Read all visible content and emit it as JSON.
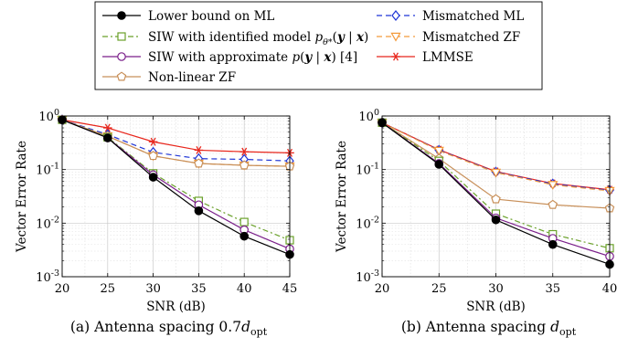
{
  "legend": {
    "entries": [
      {
        "series": "lb",
        "label": "Lower bound on ML"
      },
      {
        "series": "mml",
        "label": "Mismatched ML"
      },
      {
        "series": "siw_id",
        "label": "SIW with identified model p_θ*(y | x)"
      },
      {
        "series": "mzf",
        "label": "Mismatched ZF"
      },
      {
        "series": "siw_ap",
        "label": "SIW with approximate p(y | x) [4]"
      },
      {
        "series": "lmmse",
        "label": "LMMSE"
      },
      {
        "series": "nlzf",
        "label": "Non-linear ZF"
      }
    ]
  },
  "series_styles": {
    "lb": {
      "color": "#000000",
      "dash": "",
      "marker": "filled-circle"
    },
    "siw_id": {
      "color": "#6aa12a",
      "dash": "6,3,2,3",
      "marker": "square"
    },
    "siw_ap": {
      "color": "#7a1f8a",
      "dash": "",
      "marker": "circle"
    },
    "nlzf": {
      "color": "#c8905a",
      "dash": "",
      "marker": "pentagon"
    },
    "mml": {
      "color": "#1f35d6",
      "dash": "6,4",
      "marker": "diamond"
    },
    "mzf": {
      "color": "#f39a3a",
      "dash": "6,4",
      "marker": "triangle-down"
    },
    "lmmse": {
      "color": "#e8261c",
      "dash": "",
      "marker": "asterisk"
    }
  },
  "chart_data": [
    {
      "type": "line",
      "caption": "(a) Antenna spacing 0.7d_opt",
      "xlabel": "SNR (dB)",
      "ylabel": "Vector Error Rate",
      "yscale": "log",
      "xlim": [
        20,
        45
      ],
      "ylim": [
        0.001,
        1
      ],
      "xticks": [
        20,
        25,
        30,
        35,
        40,
        45
      ],
      "yticks": [
        {
          "value": 0.001,
          "label": "10^-3"
        },
        {
          "value": 0.01,
          "label": "10^-2"
        },
        {
          "value": 0.1,
          "label": "10^-1"
        },
        {
          "value": 1,
          "label": "10^0"
        }
      ],
      "grid": true,
      "x": [
        20,
        25,
        30,
        35,
        40,
        45
      ],
      "series": [
        {
          "key": "lmmse",
          "values": [
            0.85,
            0.6,
            0.33,
            0.23,
            0.215,
            0.205
          ]
        },
        {
          "key": "mml",
          "values": [
            0.85,
            0.45,
            0.21,
            0.16,
            0.155,
            0.145
          ]
        },
        {
          "key": "mzf",
          "values": [
            0.85,
            0.42,
            0.18,
            0.13,
            0.12,
            0.115
          ]
        },
        {
          "key": "nlzf",
          "values": [
            0.85,
            0.42,
            0.18,
            0.13,
            0.12,
            0.115
          ]
        },
        {
          "key": "siw_id",
          "values": [
            0.85,
            0.4,
            0.085,
            0.026,
            0.0105,
            0.0048
          ]
        },
        {
          "key": "siw_ap",
          "values": [
            0.85,
            0.39,
            0.08,
            0.022,
            0.0075,
            0.0033
          ]
        },
        {
          "key": "lb",
          "values": [
            0.85,
            0.39,
            0.072,
            0.017,
            0.0057,
            0.0026
          ]
        }
      ]
    },
    {
      "type": "line",
      "caption": "(b) Antenna spacing d_opt",
      "xlabel": "SNR (dB)",
      "ylabel": "Vector Error Rate",
      "yscale": "log",
      "xlim": [
        20,
        40
      ],
      "ylim": [
        0.001,
        1
      ],
      "xticks": [
        20,
        25,
        30,
        35,
        40
      ],
      "yticks": [
        {
          "value": 0.001,
          "label": "10^-3"
        },
        {
          "value": 0.01,
          "label": "10^-2"
        },
        {
          "value": 0.1,
          "label": "10^-1"
        },
        {
          "value": 1,
          "label": "10^0"
        }
      ],
      "grid": true,
      "x": [
        20,
        25,
        30,
        35,
        40
      ],
      "series": [
        {
          "key": "lmmse",
          "values": [
            0.75,
            0.235,
            0.092,
            0.055,
            0.042
          ]
        },
        {
          "key": "mml",
          "values": [
            0.75,
            0.23,
            0.09,
            0.054,
            0.041
          ]
        },
        {
          "key": "mzf",
          "values": [
            0.75,
            0.225,
            0.088,
            0.052,
            0.04
          ]
        },
        {
          "key": "nlzf",
          "values": [
            0.75,
            0.16,
            0.028,
            0.022,
            0.019
          ]
        },
        {
          "key": "siw_id",
          "values": [
            0.75,
            0.145,
            0.015,
            0.0062,
            0.0034
          ]
        },
        {
          "key": "siw_ap",
          "values": [
            0.75,
            0.13,
            0.0125,
            0.0052,
            0.0024
          ]
        },
        {
          "key": "lb",
          "values": [
            0.75,
            0.125,
            0.0115,
            0.004,
            0.0017
          ]
        }
      ]
    }
  ]
}
